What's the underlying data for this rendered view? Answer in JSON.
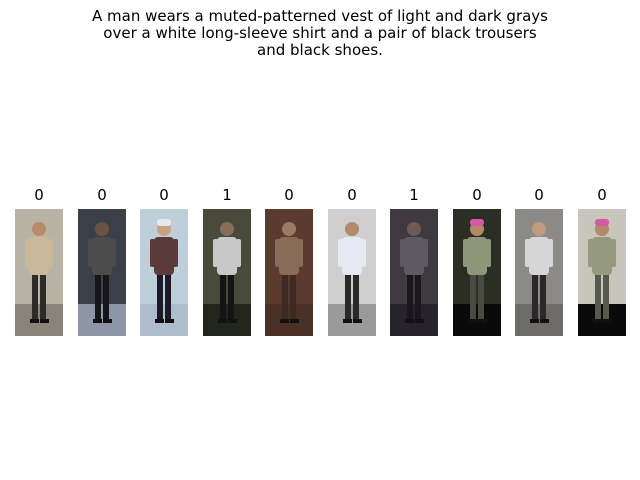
{
  "caption_lines": [
    "A man wears a muted-patterned vest of light and dark grays",
    "over a white long-sleeve shirt and a pair of black trousers",
    "and black shoes."
  ],
  "gallery": [
    {
      "label": "0",
      "bg": "#b9b3a6",
      "ground": "#8a8478",
      "skin": "#b88b6a",
      "top": "#c9b99a",
      "pants": "#2c2b2a",
      "hat": ""
    },
    {
      "label": "0",
      "bg": "#3b4048",
      "ground": "#8e96a6",
      "skin": "#6a5244",
      "top": "#4c4c4c",
      "pants": "#15151a",
      "hat": ""
    },
    {
      "label": "0",
      "bg": "#bfcfda",
      "ground": "#aebccb",
      "skin": "#c9a184",
      "top": "#5a3b3a",
      "pants": "#1b1a26",
      "hat": "#e8e8e8"
    },
    {
      "label": "1",
      "bg": "#4a4a3c",
      "ground": "#23261c",
      "skin": "#8a6d58",
      "top": "#c8c8c8",
      "pants": "#141414",
      "hat": ""
    },
    {
      "label": "0",
      "bg": "#5b3a30",
      "ground": "#4a3026",
      "skin": "#9c7a64",
      "top": "#8a6a58",
      "pants": "#3e2a22",
      "hat": ""
    },
    {
      "label": "0",
      "bg": "#cfcfcf",
      "ground": "#9a9a9a",
      "skin": "#b38a6e",
      "top": "#e6e9f2",
      "pants": "#2a2a2a",
      "hat": ""
    },
    {
      "label": "1",
      "bg": "#3e3a40",
      "ground": "#26232a",
      "skin": "#6e5a52",
      "top": "#5e5a64",
      "pants": "#1a171c",
      "hat": ""
    },
    {
      "label": "0",
      "bg": "#2a2e24",
      "ground": "#0a0a0a",
      "skin": "#b48868",
      "top": "#8f977a",
      "pants": "#4a4a40",
      "hat": "#d45aa8"
    },
    {
      "label": "0",
      "bg": "#8c8a86",
      "ground": "#6e6c68",
      "skin": "#c09a7e",
      "top": "#d6d6d6",
      "pants": "#2a2828",
      "hat": ""
    },
    {
      "label": "0",
      "bg": "#c8c6bc",
      "ground": "#0a0a0a",
      "skin": "#b48868",
      "top": "#95997e",
      "pants": "#565a4c",
      "hat": "#d45aa8"
    }
  ]
}
